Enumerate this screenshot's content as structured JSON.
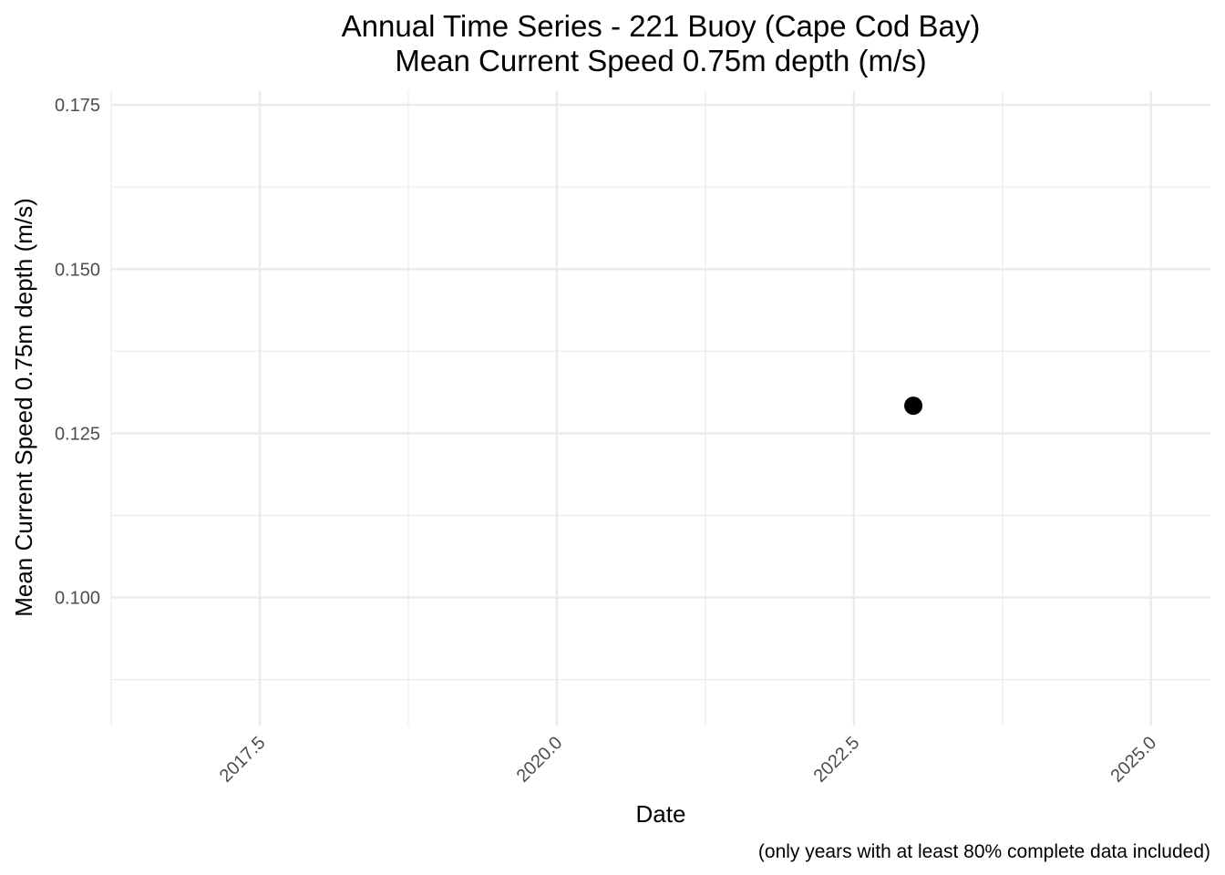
{
  "chart_data": {
    "type": "scatter",
    "title": "Annual Time Series - 221 Buoy (Cape Cod Bay)",
    "subtitle": "Mean Current Speed 0.75m depth (m/s)",
    "xlabel": "Date",
    "ylabel": "Mean Current Speed 0.75m depth (m/s)",
    "caption": "(only years with at least 80% complete data included)",
    "xlim": [
      2016.25,
      2025.5
    ],
    "ylim": [
      0.0805,
      0.1771
    ],
    "x_ticks": [
      2017.5,
      2020.0,
      2022.5,
      2025.0
    ],
    "x_tick_labels": [
      "2017.5",
      "2020.0",
      "2022.5",
      "2025.0"
    ],
    "x_minor_ticks": [
      2016.25,
      2018.75,
      2021.25,
      2023.75
    ],
    "y_ticks": [
      0.1,
      0.125,
      0.15,
      0.175
    ],
    "y_tick_labels": [
      "0.100",
      "0.125",
      "0.150",
      "0.175"
    ],
    "y_minor_ticks": [
      0.0875,
      0.1125,
      0.1375,
      0.1625
    ],
    "grid": true,
    "legend": "none",
    "point_color": "#000000",
    "grid_color": "#ebebeb",
    "tick_label_color": "#4d4d4d",
    "series": [
      {
        "x": [
          2023.0
        ],
        "y": [
          0.1292
        ]
      }
    ]
  }
}
